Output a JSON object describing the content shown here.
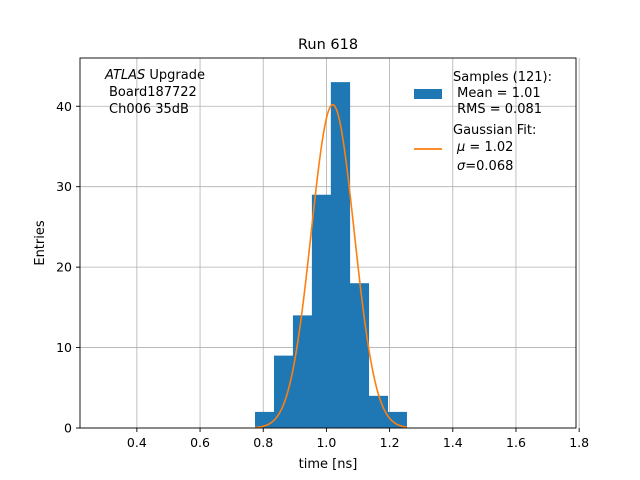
{
  "chart_data": {
    "type": "bar",
    "title": "Run 618",
    "xlabel": "time [ns]",
    "ylabel": "Entries",
    "xlim": [
      0.22,
      1.79
    ],
    "ylim": [
      0,
      46
    ],
    "grid": true,
    "x_ticks": [
      0.4,
      0.6,
      0.8,
      1.0,
      1.2,
      1.4,
      1.6,
      1.8
    ],
    "x_tick_labels": [
      "0.4",
      "0.6",
      "0.8",
      "1.0",
      "1.2",
      "1.4",
      "1.6",
      "1.8"
    ],
    "y_ticks": [
      0,
      10,
      20,
      30,
      40
    ],
    "y_tick_labels": [
      "0",
      "10",
      "20",
      "30",
      "40"
    ],
    "annotation": {
      "italic": "ATLAS",
      "rest": " Upgrade",
      "line2": "Board187722",
      "line3": "Ch006 35dB"
    },
    "histogram": {
      "bin_edges": [
        0.774,
        0.834,
        0.894,
        0.954,
        1.014,
        1.074,
        1.134,
        1.194,
        1.254
      ],
      "counts": [
        2,
        9,
        14,
        29,
        43,
        18,
        4,
        2
      ],
      "color": "#1f77b4"
    },
    "gaussian_fit": {
      "amplitude": 40.2,
      "mu": 1.02,
      "sigma": 0.068,
      "x_range": [
        0.774,
        1.254
      ],
      "color": "#ff7f0e"
    },
    "legend": {
      "location": "top-right",
      "hist_title": "Samples (121):",
      "hist_mean": " Mean = 1.01",
      "hist_rms": " RMS = 0.081",
      "fit_title": "Gaussian Fit:",
      "fit_mu_symbol": "μ",
      "fit_mu_value": " = 1.02",
      "fit_sigma_symbol": "σ",
      "fit_sigma_value": "=0.068"
    }
  }
}
